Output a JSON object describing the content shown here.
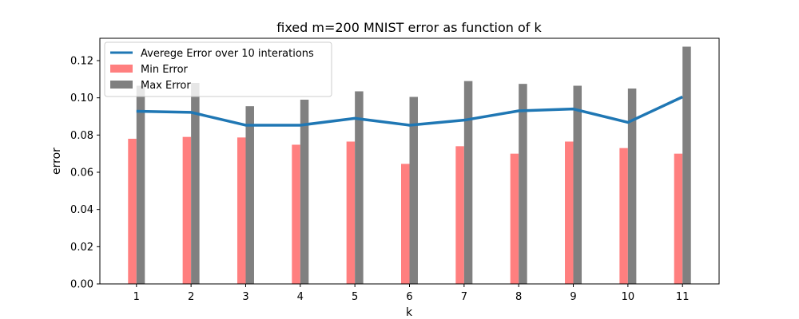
{
  "chart_data": {
    "type": "bar",
    "title": "fixed m=200 MNIST error as function of k",
    "xlabel": "k",
    "ylabel": "error",
    "categories": [
      "1",
      "2",
      "3",
      "4",
      "5",
      "6",
      "7",
      "8",
      "9",
      "10",
      "11"
    ],
    "x": [
      1,
      2,
      3,
      4,
      5,
      6,
      7,
      8,
      9,
      10,
      11
    ],
    "ylim": [
      0,
      0.132
    ],
    "yticks": [
      0.0,
      0.02,
      0.04,
      0.06,
      0.08,
      0.1,
      0.12
    ],
    "ytick_labels": [
      "0.00",
      "0.02",
      "0.04",
      "0.06",
      "0.08",
      "0.10",
      "0.12"
    ],
    "grid": false,
    "legend_position": "top-left",
    "series": [
      {
        "name": "Averege Error over 10 interations",
        "kind": "line",
        "color": "#1f77b4",
        "values": [
          0.0928,
          0.0922,
          0.0853,
          0.0853,
          0.089,
          0.0853,
          0.088,
          0.093,
          0.094,
          0.0868,
          0.1005
        ]
      },
      {
        "name": "Min Error",
        "kind": "bar",
        "color": "#ff7f7f",
        "values": [
          0.078,
          0.079,
          0.0787,
          0.0748,
          0.0765,
          0.0645,
          0.074,
          0.07,
          0.0765,
          0.073,
          0.07
        ]
      },
      {
        "name": "Max Error",
        "kind": "bar",
        "color": "#808080",
        "values": [
          0.1065,
          0.108,
          0.0955,
          0.099,
          0.1035,
          0.1005,
          0.109,
          0.1075,
          0.1065,
          0.105,
          0.1275
        ]
      }
    ]
  }
}
